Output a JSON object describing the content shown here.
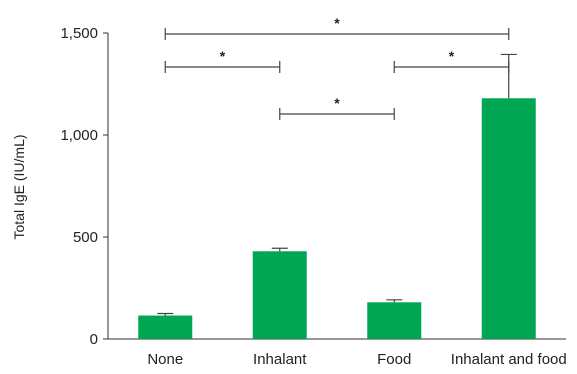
{
  "chart_data": {
    "type": "bar",
    "ylabel": "Total IgE (IU/mL)",
    "xlabel": "",
    "ylim": [
      0,
      1500
    ],
    "yticks": [
      0,
      500,
      1000,
      1500
    ],
    "ytick_labels": [
      "0",
      "500",
      "1,000",
      "1,500"
    ],
    "categories": [
      "None",
      "Inhalant",
      "Food",
      "Inhalant and food"
    ],
    "values": [
      115,
      430,
      180,
      1180
    ],
    "error_upper": [
      10,
      15,
      12,
      215
    ],
    "bar_color": "#00a651",
    "grid": false,
    "significance": [
      {
        "from": "None",
        "to": "Inhalant and food",
        "label": "*"
      },
      {
        "from": "None",
        "to": "Inhalant",
        "label": "*"
      },
      {
        "from": "Food",
        "to": "Inhalant and food",
        "label": "*"
      },
      {
        "from": "Inhalant",
        "to": "Food",
        "label": "*"
      }
    ]
  }
}
